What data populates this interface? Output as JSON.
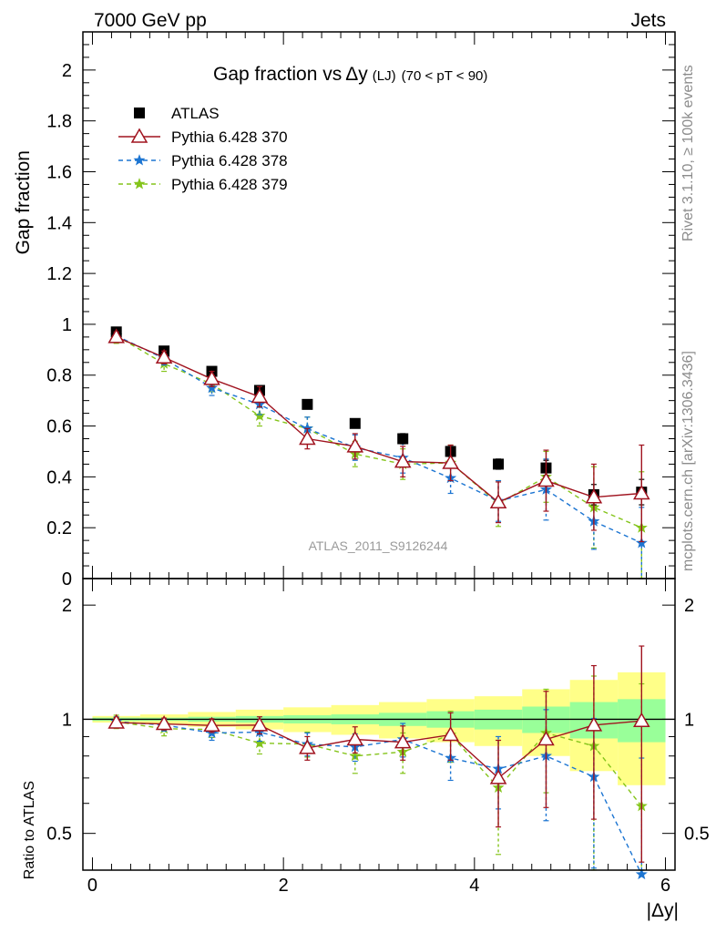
{
  "header": {
    "left": "7000 GeV pp",
    "right": "Jets"
  },
  "side_labels": {
    "rivet": "Rivet 3.1.10, ≥ 100k events",
    "mcplots": "mcplots.cern.ch [arXiv:1306.3436]"
  },
  "watermark": "ATLAS_2011_S9126244",
  "colors": {
    "atlas": "#000000",
    "p370": "#a0131f",
    "p378": "#1c75d2",
    "p379": "#84c41a",
    "band_outer": "#ffff88",
    "band_inner": "#99ff99"
  },
  "chart_data": [
    {
      "type": "scatter",
      "title_main": "Gap fraction vs",
      "title_delta": "Δy",
      "title_sub": "(LJ)",
      "title_range": "(70 < pT <  90)",
      "ylabel": "Gap fraction",
      "ylim": [
        0,
        2.15
      ],
      "yticks": [
        "0",
        "0.2",
        "0.4",
        "0.6",
        "0.8",
        "1",
        "1.2",
        "1.4",
        "1.6",
        "1.8",
        "2"
      ],
      "x": [
        0.25,
        0.75,
        1.25,
        1.75,
        2.25,
        2.75,
        3.25,
        3.75,
        4.25,
        4.75,
        5.25,
        5.75
      ],
      "legend_position": "top-left",
      "series": [
        {
          "name": "ATLAS",
          "key": "atlas",
          "values": [
            0.97,
            0.895,
            0.815,
            0.74,
            0.685,
            0.61,
            0.55,
            0.5,
            0.45,
            0.435,
            0.33,
            0.34
          ],
          "errors": [
            0.01,
            0.01,
            0.01,
            0.01,
            0.01,
            0.01,
            0.02,
            0.02,
            0.02,
            0.03,
            0.04,
            0.05
          ]
        },
        {
          "name": "Pythia 6.428 370",
          "key": "p370",
          "values": [
            0.95,
            0.87,
            0.785,
            0.715,
            0.55,
            0.52,
            0.46,
            0.455,
            0.3,
            0.385,
            0.32,
            0.335
          ],
          "errors": [
            0.02,
            0.025,
            0.03,
            0.04,
            0.04,
            0.05,
            0.06,
            0.07,
            0.08,
            0.12,
            0.13,
            0.19
          ]
        },
        {
          "name": "Pythia 6.428 378",
          "key": "p378",
          "values": [
            0.955,
            0.865,
            0.75,
            0.685,
            0.59,
            0.515,
            0.475,
            0.395,
            0.305,
            0.35,
            0.225,
            0.14
          ],
          "errors": [
            0.02,
            0.025,
            0.03,
            0.04,
            0.045,
            0.05,
            0.06,
            0.06,
            0.08,
            0.12,
            0.11,
            0.14
          ]
        },
        {
          "name": "Pythia 6.428 379",
          "key": "p379",
          "values": [
            0.955,
            0.845,
            0.765,
            0.64,
            0.59,
            0.49,
            0.45,
            0.455,
            0.295,
            0.4,
            0.28,
            0.2
          ],
          "errors": [
            0.03,
            0.03,
            0.03,
            0.04,
            0.045,
            0.05,
            0.06,
            0.07,
            0.09,
            0.1,
            0.16,
            0.22
          ]
        }
      ]
    },
    {
      "type": "scatter",
      "ylabel": "Ratio to ATLAS",
      "xlabel": "|Δy|",
      "scale": "log",
      "ylim": [
        0.4,
        2.35
      ],
      "yticks": [
        "0.5",
        "1",
        "2"
      ],
      "xlim": [
        -0.1,
        6.1
      ],
      "xticks": [
        "0",
        "2",
        "4",
        "6"
      ],
      "band_edges": [
        0,
        0.5,
        1,
        1.5,
        2,
        2.5,
        3,
        3.5,
        4,
        4.5,
        5,
        5.5,
        6
      ],
      "band_inner": [
        0.01,
        0.01,
        0.015,
        0.02,
        0.025,
        0.03,
        0.04,
        0.05,
        0.06,
        0.08,
        0.11,
        0.13
      ],
      "band_outer": [
        0.02,
        0.03,
        0.045,
        0.06,
        0.075,
        0.09,
        0.11,
        0.13,
        0.15,
        0.2,
        0.27,
        0.33
      ],
      "series": [
        {
          "name": "Pythia 6.428 370",
          "key": "p370",
          "values": [
            0.98,
            0.972,
            0.963,
            0.965,
            0.84,
            0.885,
            0.87,
            0.91,
            0.7,
            0.885,
            0.965,
            0.99
          ],
          "errors": [
            0.03,
            0.035,
            0.04,
            0.05,
            0.06,
            0.07,
            0.09,
            0.13,
            0.18,
            0.3,
            0.42,
            0.57
          ]
        },
        {
          "name": "Pythia 6.428 378",
          "key": "p378",
          "values": [
            0.985,
            0.966,
            0.92,
            0.925,
            0.86,
            0.845,
            0.885,
            0.79,
            0.74,
            0.8,
            0.705,
            0.39
          ],
          "errors": [
            0.03,
            0.035,
            0.04,
            0.05,
            0.06,
            0.07,
            0.09,
            0.1,
            0.16,
            0.26,
            0.3,
            0.4
          ]
        },
        {
          "name": "Pythia 6.428 379",
          "key": "p379",
          "values": [
            0.985,
            0.944,
            0.94,
            0.865,
            0.86,
            0.8,
            0.82,
            0.91,
            0.66,
            0.92,
            0.85,
            0.59
          ],
          "errors": [
            0.04,
            0.04,
            0.045,
            0.055,
            0.065,
            0.08,
            0.1,
            0.14,
            0.22,
            0.28,
            0.45,
            0.65
          ]
        }
      ]
    }
  ]
}
